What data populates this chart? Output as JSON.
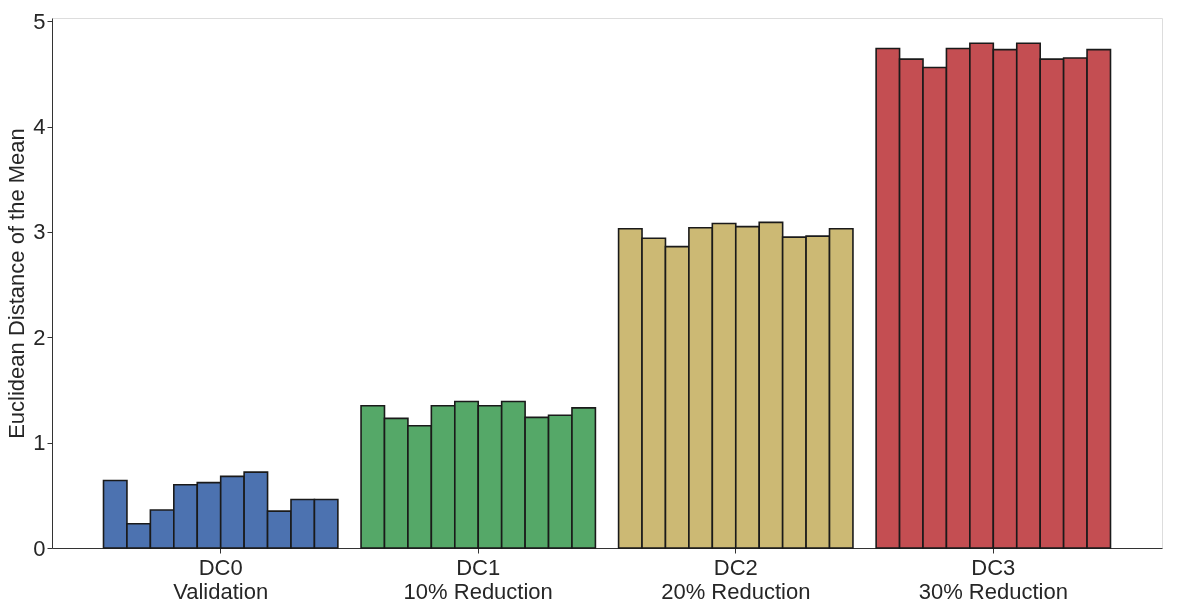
{
  "chart_data": {
    "type": "bar",
    "ylabel": "Euclidean Distance of the Mean",
    "categories": [
      "DC0\nValidation",
      "DC1\n10% Reduction",
      "DC2\n20% Reduction",
      "DC3\n30% Reduction"
    ],
    "series": [
      {
        "colors": [
          "#4c72b0",
          "#55a868",
          "#ccb974",
          "#c44e52"
        ],
        "values": [
          0.64,
          1.35,
          3.03,
          4.74
        ]
      },
      {
        "colors": [
          "#4c72b0",
          "#55a868",
          "#ccb974",
          "#c44e52"
        ],
        "values": [
          0.23,
          1.23,
          2.94,
          4.64
        ]
      },
      {
        "colors": [
          "#4c72b0",
          "#55a868",
          "#ccb974",
          "#c44e52"
        ],
        "values": [
          0.36,
          1.16,
          2.86,
          4.56
        ]
      },
      {
        "colors": [
          "#4c72b0",
          "#55a868",
          "#ccb974",
          "#c44e52"
        ],
        "values": [
          0.6,
          1.35,
          3.04,
          4.74
        ]
      },
      {
        "colors": [
          "#4c72b0",
          "#55a868",
          "#ccb974",
          "#c44e52"
        ],
        "values": [
          0.62,
          1.39,
          3.08,
          4.79
        ]
      },
      {
        "colors": [
          "#4c72b0",
          "#55a868",
          "#ccb974",
          "#c44e52"
        ],
        "values": [
          0.68,
          1.35,
          3.05,
          4.73
        ]
      },
      {
        "colors": [
          "#4c72b0",
          "#55a868",
          "#ccb974",
          "#c44e52"
        ],
        "values": [
          0.72,
          1.39,
          3.09,
          4.79
        ]
      },
      {
        "colors": [
          "#4c72b0",
          "#55a868",
          "#ccb974",
          "#c44e52"
        ],
        "values": [
          0.35,
          1.24,
          2.95,
          4.64
        ]
      },
      {
        "colors": [
          "#4c72b0",
          "#55a868",
          "#ccb974",
          "#c44e52"
        ],
        "values": [
          0.46,
          1.26,
          2.96,
          4.65
        ]
      },
      {
        "colors": [
          "#4c72b0",
          "#55a868",
          "#ccb974",
          "#c44e52"
        ],
        "values": [
          0.46,
          1.33,
          3.03,
          4.73
        ]
      }
    ],
    "ylim": [
      0,
      5.03
    ],
    "yticks": [
      0,
      1,
      2,
      3,
      4,
      5
    ]
  }
}
